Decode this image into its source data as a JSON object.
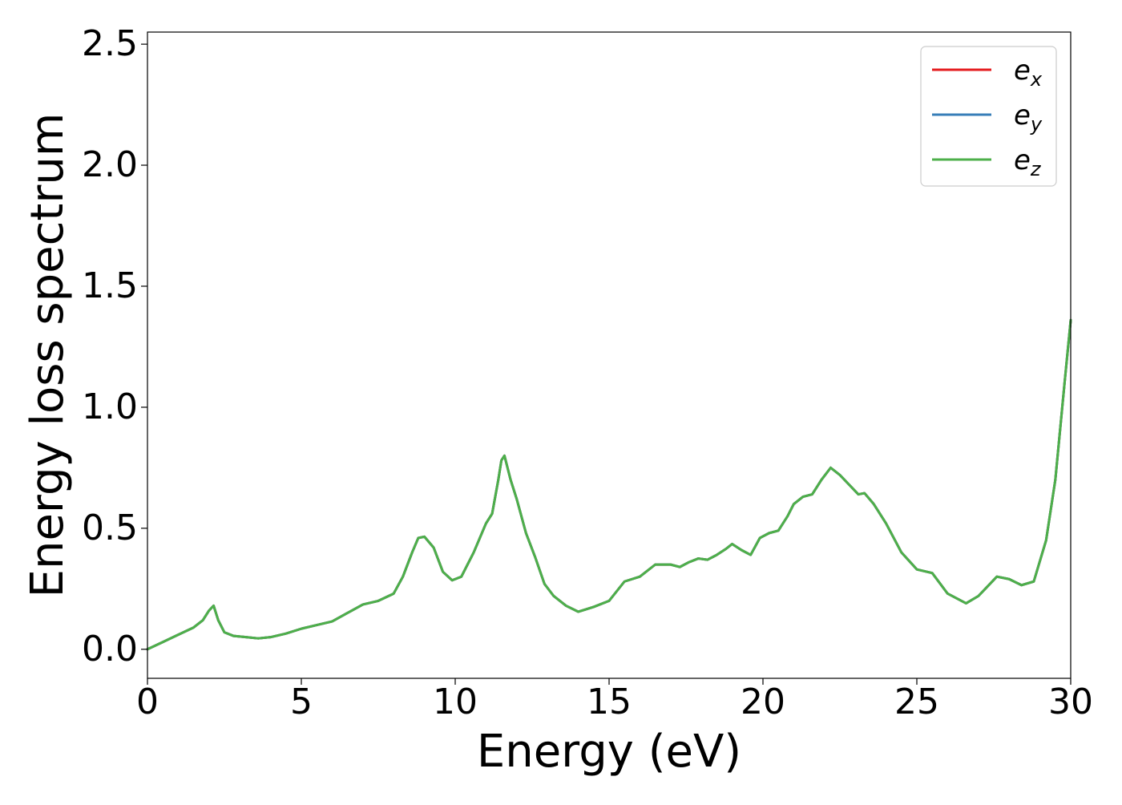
{
  "chart_data": {
    "type": "line",
    "xlabel": "Energy (eV)",
    "ylabel": "Energy loss spectrum",
    "xlim": [
      0,
      30
    ],
    "ylim": [
      -0.12,
      2.55
    ],
    "xticks": [
      0,
      5,
      10,
      15,
      20,
      25,
      30
    ],
    "xtick_labels": [
      "0",
      "5",
      "10",
      "15",
      "20",
      "25",
      "30"
    ],
    "yticks": [
      0.0,
      0.5,
      1.0,
      1.5,
      2.0,
      2.5
    ],
    "ytick_labels": [
      "0.0",
      "0.5",
      "1.0",
      "1.5",
      "2.0",
      "2.5"
    ],
    "grid": false,
    "legend_position": "top-right",
    "series": [
      {
        "name": "e_x",
        "legend_base": "e",
        "legend_sub": "x",
        "color": "#e41a1c",
        "x": [
          0,
          0.5,
          1.0,
          1.5,
          1.8,
          2.0,
          2.15,
          2.3,
          2.5,
          2.8,
          3.2,
          3.6,
          4.0,
          4.5,
          5.0,
          5.5,
          6.0,
          6.5,
          7.0,
          7.5,
          8.0,
          8.3,
          8.6,
          8.8,
          9.0,
          9.3,
          9.6,
          9.9,
          10.2,
          10.6,
          11.0,
          11.2,
          11.4,
          11.5,
          11.6,
          11.8,
          12.0,
          12.3,
          12.6,
          12.9,
          13.2,
          13.6,
          14.0,
          14.5,
          15.0,
          15.5,
          16.0,
          16.5,
          17.0,
          17.3,
          17.6,
          17.9,
          18.2,
          18.5,
          18.8,
          19.0,
          19.3,
          19.6,
          19.9,
          20.2,
          20.5,
          20.8,
          21.0,
          21.3,
          21.6,
          21.9,
          22.2,
          22.5,
          22.8,
          23.1,
          23.3,
          23.6,
          24.0,
          24.5,
          25.0,
          25.5,
          26.0,
          26.6,
          27.0,
          27.3,
          27.6,
          28.0,
          28.4,
          28.8,
          29.2,
          29.5,
          29.8,
          30.0
        ],
        "y": [
          0.0,
          0.03,
          0.06,
          0.09,
          0.12,
          0.16,
          0.18,
          0.12,
          0.07,
          0.055,
          0.05,
          0.045,
          0.05,
          0.065,
          0.085,
          0.1,
          0.115,
          0.15,
          0.185,
          0.2,
          0.23,
          0.3,
          0.4,
          0.46,
          0.465,
          0.42,
          0.32,
          0.285,
          0.3,
          0.4,
          0.52,
          0.56,
          0.7,
          0.78,
          0.8,
          0.7,
          0.62,
          0.48,
          0.38,
          0.27,
          0.22,
          0.18,
          0.155,
          0.175,
          0.2,
          0.28,
          0.3,
          0.35,
          0.35,
          0.34,
          0.36,
          0.375,
          0.37,
          0.39,
          0.415,
          0.435,
          0.41,
          0.39,
          0.46,
          0.48,
          0.49,
          0.55,
          0.6,
          0.63,
          0.64,
          0.7,
          0.75,
          0.72,
          0.68,
          0.64,
          0.645,
          0.6,
          0.52,
          0.4,
          0.33,
          0.315,
          0.23,
          0.19,
          0.22,
          0.26,
          0.3,
          0.29,
          0.265,
          0.28,
          0.45,
          0.7,
          1.1,
          1.36
        ]
      },
      {
        "name": "e_y",
        "legend_base": "e",
        "legend_sub": "y",
        "color": "#377eb8",
        "x": [
          0,
          0.5,
          1.0,
          1.5,
          1.8,
          2.0,
          2.15,
          2.3,
          2.5,
          2.8,
          3.2,
          3.6,
          4.0,
          4.5,
          5.0,
          5.5,
          6.0,
          6.5,
          7.0,
          7.5,
          8.0,
          8.3,
          8.6,
          8.8,
          9.0,
          9.3,
          9.6,
          9.9,
          10.2,
          10.6,
          11.0,
          11.2,
          11.4,
          11.5,
          11.6,
          11.8,
          12.0,
          12.3,
          12.6,
          12.9,
          13.2,
          13.6,
          14.0,
          14.5,
          15.0,
          15.5,
          16.0,
          16.5,
          17.0,
          17.3,
          17.6,
          17.9,
          18.2,
          18.5,
          18.8,
          19.0,
          19.3,
          19.6,
          19.9,
          20.2,
          20.5,
          20.8,
          21.0,
          21.3,
          21.6,
          21.9,
          22.2,
          22.5,
          22.8,
          23.1,
          23.3,
          23.6,
          24.0,
          24.5,
          25.0,
          25.5,
          26.0,
          26.6,
          27.0,
          27.3,
          27.6,
          28.0,
          28.4,
          28.8,
          29.2,
          29.5,
          29.8,
          30.0
        ],
        "y": [
          0.0,
          0.03,
          0.06,
          0.09,
          0.12,
          0.16,
          0.18,
          0.12,
          0.07,
          0.055,
          0.05,
          0.045,
          0.05,
          0.065,
          0.085,
          0.1,
          0.115,
          0.15,
          0.185,
          0.2,
          0.23,
          0.3,
          0.4,
          0.46,
          0.465,
          0.42,
          0.32,
          0.285,
          0.3,
          0.4,
          0.52,
          0.56,
          0.7,
          0.78,
          0.8,
          0.7,
          0.62,
          0.48,
          0.38,
          0.27,
          0.22,
          0.18,
          0.155,
          0.175,
          0.2,
          0.28,
          0.3,
          0.35,
          0.35,
          0.34,
          0.36,
          0.375,
          0.37,
          0.39,
          0.415,
          0.435,
          0.41,
          0.39,
          0.46,
          0.48,
          0.49,
          0.55,
          0.6,
          0.63,
          0.64,
          0.7,
          0.75,
          0.72,
          0.68,
          0.64,
          0.645,
          0.6,
          0.52,
          0.4,
          0.33,
          0.315,
          0.23,
          0.19,
          0.22,
          0.26,
          0.3,
          0.29,
          0.265,
          0.28,
          0.45,
          0.7,
          1.1,
          1.36
        ]
      },
      {
        "name": "e_z",
        "legend_base": "e",
        "legend_sub": "z",
        "color": "#4daf4a",
        "x": [
          0,
          0.5,
          1.0,
          1.5,
          1.8,
          2.0,
          2.15,
          2.3,
          2.5,
          2.8,
          3.2,
          3.6,
          4.0,
          4.5,
          5.0,
          5.5,
          6.0,
          6.5,
          7.0,
          7.5,
          8.0,
          8.3,
          8.6,
          8.8,
          9.0,
          9.3,
          9.6,
          9.9,
          10.2,
          10.6,
          11.0,
          11.2,
          11.4,
          11.5,
          11.6,
          11.8,
          12.0,
          12.3,
          12.6,
          12.9,
          13.2,
          13.6,
          14.0,
          14.5,
          15.0,
          15.5,
          16.0,
          16.5,
          17.0,
          17.3,
          17.6,
          17.9,
          18.2,
          18.5,
          18.8,
          19.0,
          19.3,
          19.6,
          19.9,
          20.2,
          20.5,
          20.8,
          21.0,
          21.3,
          21.6,
          21.9,
          22.2,
          22.5,
          22.8,
          23.1,
          23.3,
          23.6,
          24.0,
          24.5,
          25.0,
          25.5,
          26.0,
          26.6,
          27.0,
          27.3,
          27.6,
          28.0,
          28.4,
          28.8,
          29.2,
          29.5,
          29.8,
          30.0
        ],
        "y": [
          0.0,
          0.03,
          0.06,
          0.09,
          0.12,
          0.16,
          0.18,
          0.12,
          0.07,
          0.055,
          0.05,
          0.045,
          0.05,
          0.065,
          0.085,
          0.1,
          0.115,
          0.15,
          0.185,
          0.2,
          0.23,
          0.3,
          0.4,
          0.46,
          0.465,
          0.42,
          0.32,
          0.285,
          0.3,
          0.4,
          0.52,
          0.56,
          0.7,
          0.78,
          0.8,
          0.7,
          0.62,
          0.48,
          0.38,
          0.27,
          0.22,
          0.18,
          0.155,
          0.175,
          0.2,
          0.28,
          0.3,
          0.35,
          0.35,
          0.34,
          0.36,
          0.375,
          0.37,
          0.39,
          0.415,
          0.435,
          0.41,
          0.39,
          0.46,
          0.48,
          0.49,
          0.55,
          0.6,
          0.63,
          0.64,
          0.7,
          0.75,
          0.72,
          0.68,
          0.64,
          0.645,
          0.6,
          0.52,
          0.4,
          0.33,
          0.315,
          0.23,
          0.19,
          0.22,
          0.26,
          0.3,
          0.29,
          0.265,
          0.28,
          0.45,
          0.7,
          1.1,
          1.36
        ]
      }
    ]
  }
}
